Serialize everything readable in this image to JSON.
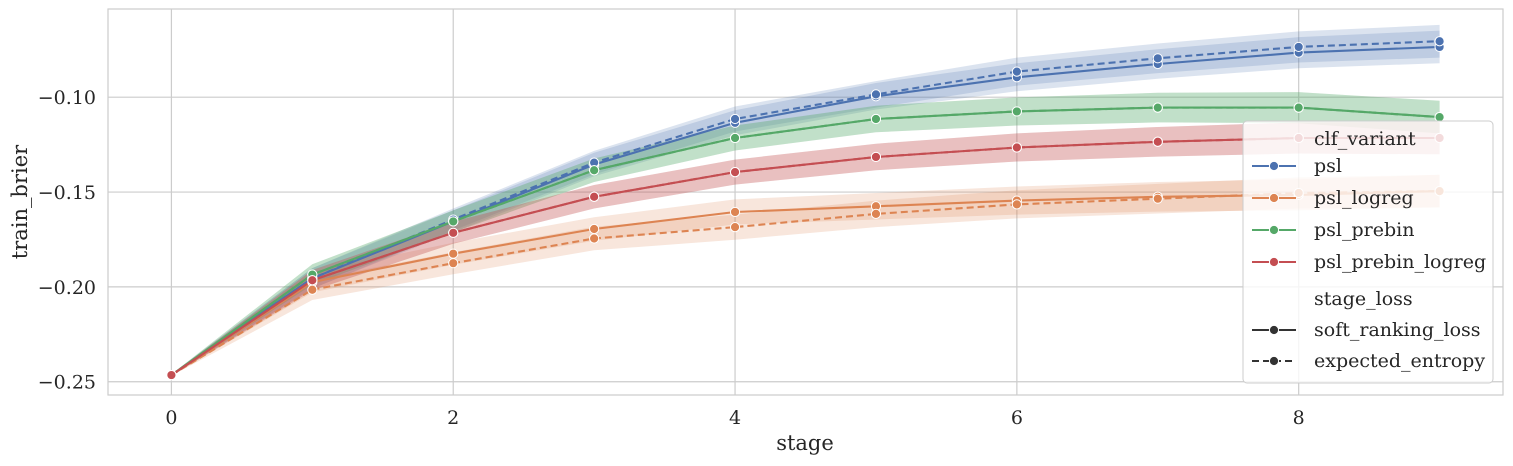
{
  "chart_data": {
    "type": "line",
    "title": "",
    "xlabel": "stage",
    "ylabel": "train_brier",
    "xlim": [
      -0.45,
      9.45
    ],
    "ylim": [
      -0.257,
      -0.0535
    ],
    "xticks": [
      0,
      2,
      4,
      6,
      8
    ],
    "xtick_labels": [
      "0",
      "2",
      "4",
      "6",
      "8"
    ],
    "yticks": [
      -0.25,
      -0.2,
      -0.15,
      -0.1
    ],
    "ytick_labels": [
      "−0.25",
      "−0.20",
      "−0.15",
      "−0.10"
    ],
    "grid": true,
    "legend_position": "center-right",
    "x": [
      0,
      1,
      2,
      3,
      4,
      5,
      6,
      7,
      8,
      9
    ],
    "series": [
      {
        "name": "psl",
        "variant": "psl",
        "loss": "soft_ranking_loss",
        "color": "#4c72b0",
        "dash": "solid",
        "values": [
          -0.2465,
          -0.1955,
          -0.1655,
          -0.1355,
          -0.1135,
          -0.0995,
          -0.0895,
          -0.0825,
          -0.0765,
          -0.0735
        ]
      },
      {
        "name": "psl",
        "variant": "psl",
        "loss": "expected_entropy",
        "color": "#4c72b0",
        "dash": "dashed",
        "values": [
          -0.2465,
          -0.1955,
          -0.1645,
          -0.1345,
          -0.1115,
          -0.0985,
          -0.0865,
          -0.0795,
          -0.0735,
          -0.0705
        ]
      },
      {
        "name": "psl_logreg",
        "variant": "psl_logreg",
        "loss": "soft_ranking_loss",
        "color": "#dd8452",
        "dash": "solid",
        "values": [
          -0.2465,
          -0.1975,
          -0.1825,
          -0.1695,
          -0.1605,
          -0.1575,
          -0.1545,
          -0.1525,
          -0.1515,
          -0.1495
        ]
      },
      {
        "name": "psl_logreg",
        "variant": "psl_logreg",
        "loss": "expected_entropy",
        "color": "#dd8452",
        "dash": "dashed",
        "values": [
          -0.2465,
          -0.2015,
          -0.1875,
          -0.1745,
          -0.1685,
          -0.1615,
          -0.1565,
          -0.1535,
          -0.1505,
          -0.1495
        ]
      },
      {
        "name": "psl_prebin",
        "variant": "psl_prebin",
        "loss": "soft_ranking_loss",
        "color": "#55a868",
        "dash": "solid",
        "values": [
          -0.2465,
          -0.1935,
          -0.1655,
          -0.1385,
          -0.1215,
          -0.1115,
          -0.1075,
          -0.1055,
          -0.1055,
          -0.1105
        ]
      },
      {
        "name": "psl_prebin",
        "variant": "psl_prebin",
        "loss": "expected_entropy",
        "color": "#55a868",
        "dash": "dashed",
        "values": [
          -0.2465,
          -0.1935,
          -0.1655,
          -0.1385,
          -0.1215,
          -0.1115,
          -0.1075,
          -0.1055,
          -0.1055,
          -0.1105
        ]
      },
      {
        "name": "psl_prebin_logreg",
        "variant": "psl_prebin_logreg",
        "loss": "soft_ranking_loss",
        "color": "#c44e52",
        "dash": "solid",
        "values": [
          -0.2465,
          -0.1965,
          -0.1715,
          -0.1525,
          -0.1395,
          -0.1315,
          -0.1265,
          -0.1235,
          -0.1215,
          -0.1215
        ]
      },
      {
        "name": "psl_prebin_logreg",
        "variant": "psl_prebin_logreg",
        "loss": "expected_entropy",
        "color": "#c44e52",
        "dash": "dashed",
        "values": [
          -0.2465,
          -0.1965,
          -0.1715,
          -0.1525,
          -0.1395,
          -0.1315,
          -0.1265,
          -0.1235,
          -0.1215,
          -0.1215
        ]
      }
    ],
    "legend": {
      "hue_title": "clf_variant",
      "hue_entries": [
        {
          "label": "psl",
          "color": "#4c72b0"
        },
        {
          "label": "psl_logreg",
          "color": "#dd8452"
        },
        {
          "label": "psl_prebin",
          "color": "#55a868"
        },
        {
          "label": "psl_prebin_logreg",
          "color": "#c44e52"
        }
      ],
      "style_title": "stage_loss",
      "style_entries": [
        {
          "label": "soft_ranking_loss",
          "dash": "solid"
        },
        {
          "label": "expected_entropy",
          "dash": "dashed"
        }
      ]
    }
  }
}
